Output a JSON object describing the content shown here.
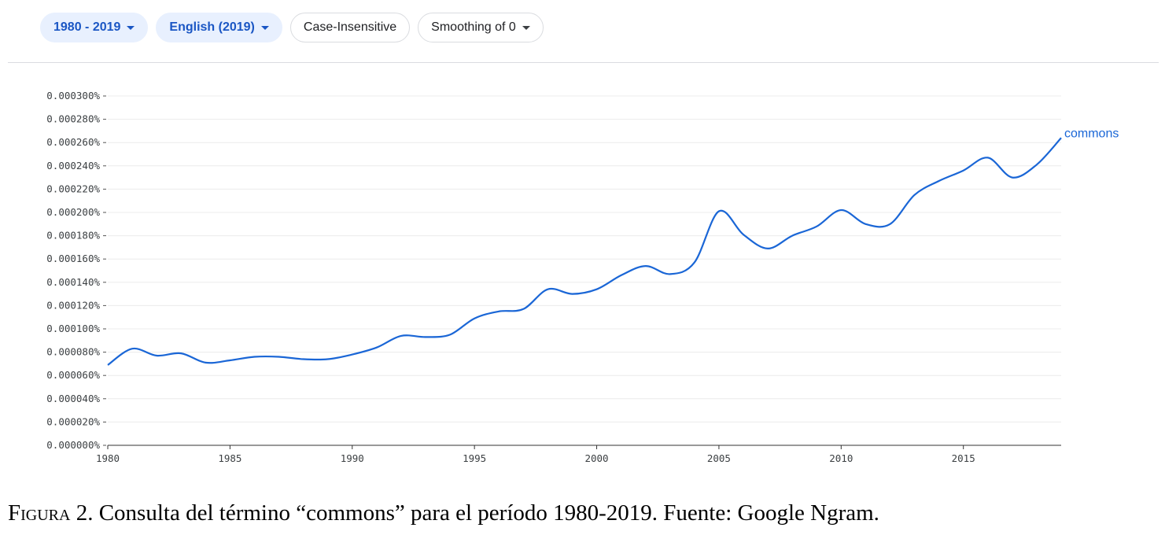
{
  "toolbar": {
    "range": "1980 - 2019",
    "corpus": "English (2019)",
    "case": "Case-Insensitive",
    "smoothing": "Smoothing of 0"
  },
  "caption": {
    "label": "Figura",
    "number": "2",
    "text": "Consulta del término “commons” para el período 1980-2019. Fuente: Google Ngram."
  },
  "colors": {
    "accent": "#1a66d6",
    "chip_primary_bg": "#e8f0fe",
    "chip_primary_text": "#1a56c4"
  },
  "chart_data": {
    "type": "line",
    "xlim": [
      1980,
      2019
    ],
    "ylim": [
      0,
      0.0003
    ],
    "x_ticks": [
      "1980",
      "1985",
      "1990",
      "1995",
      "2000",
      "2005",
      "2010",
      "2015"
    ],
    "y_ticks": [
      "0.000000%",
      "0.000020%",
      "0.000040%",
      "0.000060%",
      "0.000080%",
      "0.000100%",
      "0.000120%",
      "0.000140%",
      "0.000160%",
      "0.000180%",
      "0.000200%",
      "0.000220%",
      "0.000240%",
      "0.000260%",
      "0.000280%",
      "0.000300%"
    ],
    "grid": true,
    "series": [
      {
        "name": "commons",
        "x": [
          1980,
          1981,
          1982,
          1983,
          1984,
          1985,
          1986,
          1987,
          1988,
          1989,
          1990,
          1991,
          1992,
          1993,
          1994,
          1995,
          1996,
          1997,
          1998,
          1999,
          2000,
          2001,
          2002,
          2003,
          2004,
          2005,
          2006,
          2007,
          2008,
          2009,
          2010,
          2011,
          2012,
          2013,
          2014,
          2015,
          2016,
          2017,
          2018,
          2019
        ],
        "values": [
          6.9e-05,
          8.3e-05,
          7.7e-05,
          7.9e-05,
          7.1e-05,
          7.3e-05,
          7.6e-05,
          7.6e-05,
          7.4e-05,
          7.4e-05,
          7.8e-05,
          8.4e-05,
          9.4e-05,
          9.3e-05,
          9.5e-05,
          0.000109,
          0.000115,
          0.000117,
          0.000134,
          0.00013,
          0.000134,
          0.000146,
          0.000154,
          0.000147,
          0.000157,
          0.000201,
          0.000181,
          0.000169,
          0.00018,
          0.000188,
          0.000202,
          0.00019,
          0.00019,
          0.000215,
          0.000227,
          0.000236,
          0.000247,
          0.00023,
          0.000241,
          0.000264
        ]
      }
    ]
  }
}
